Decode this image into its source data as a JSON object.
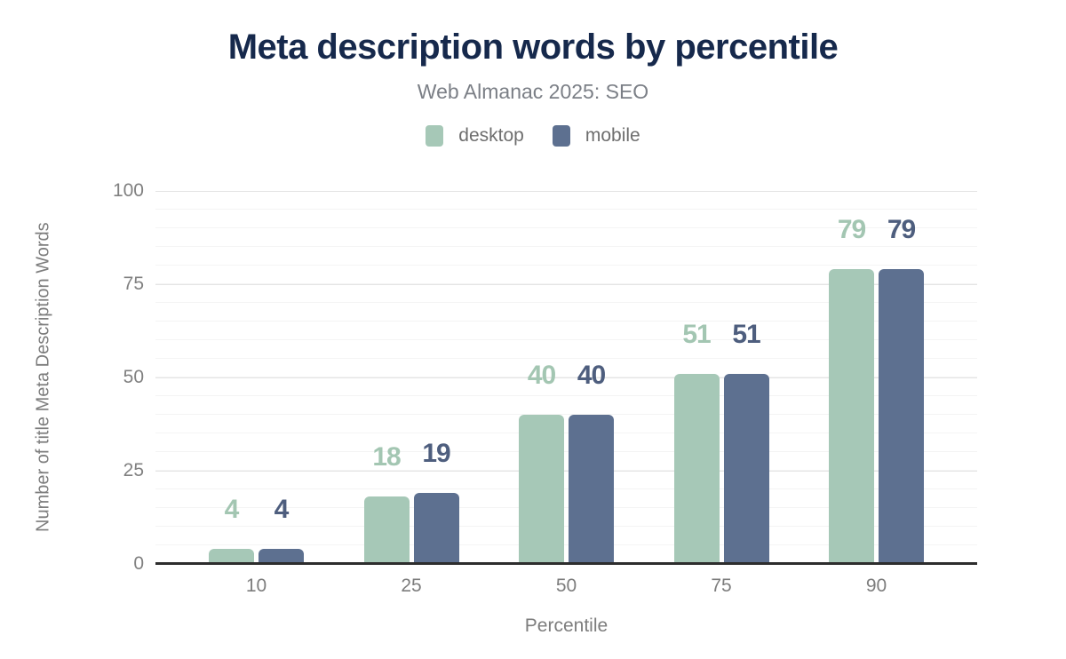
{
  "header": {
    "title": "Meta description words by percentile",
    "subtitle": "Web Almanac 2025: SEO"
  },
  "legend": {
    "items": [
      {
        "label": "desktop",
        "color": "#a6c8b7"
      },
      {
        "label": "mobile",
        "color": "#5d7090"
      }
    ]
  },
  "chart_data": {
    "type": "bar",
    "title": "Meta description words by percentile",
    "subtitle": "Web Almanac 2025: SEO",
    "categories": [
      "10",
      "25",
      "50",
      "75",
      "90"
    ],
    "series": [
      {
        "name": "desktop",
        "color": "#a6c8b7",
        "label_color": "#a3c6b2",
        "values": [
          4,
          18,
          40,
          51,
          79
        ]
      },
      {
        "name": "mobile",
        "color": "#5d7090",
        "label_color": "#4e5e7e",
        "values": [
          4,
          19,
          40,
          51,
          79
        ]
      }
    ],
    "xlabel": "Percentile",
    "ylabel": "Number of title Meta Description Words",
    "ylim": [
      0,
      100
    ],
    "yticks": [
      "0",
      "25",
      "50",
      "75",
      "100"
    ],
    "grid": "horizontal; minor every 5, major every 25",
    "legend_position": "top",
    "axis_line_color": "#2d2d2d",
    "title_color": "#16294c",
    "text_color": "#7d7d7d"
  }
}
